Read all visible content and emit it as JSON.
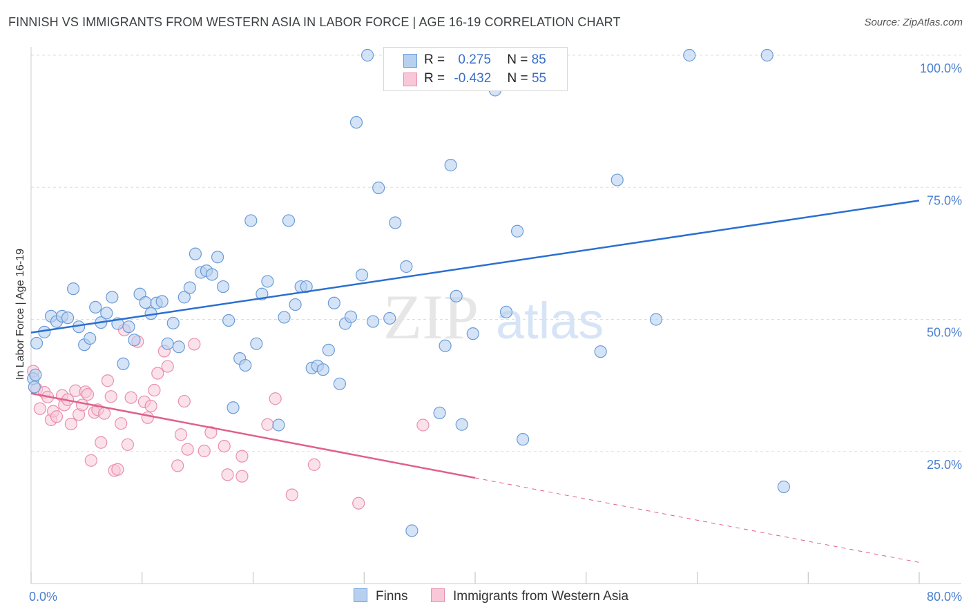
{
  "header": {
    "title": "FINNISH VS IMMIGRANTS FROM WESTERN ASIA IN LABOR FORCE | AGE 16-19 CORRELATION CHART",
    "source": "Source: ZipAtlas.com"
  },
  "watermark": {
    "zip": "ZIP",
    "atlas": "atlas"
  },
  "legend": {
    "rows": [
      {
        "r_label": "R =",
        "r_value": "0.275",
        "n_label": "N =",
        "n_value": "85"
      },
      {
        "r_label": "R =",
        "r_value": "-0.432",
        "n_label": "N =",
        "n_value": "55"
      }
    ]
  },
  "bottom_legend": {
    "finns": "Finns",
    "immigrants": "Immigrants from Western Asia"
  },
  "colors": {
    "finns_fill": "#b8d0f0",
    "finns_stroke": "#6a9bd8",
    "finns_line": "#2a6fd0",
    "imm_fill": "#f8c8d8",
    "imm_stroke": "#e890ac",
    "imm_line": "#e0608a",
    "tick_text": "#4a7fd0",
    "grid": "#dddddd"
  },
  "chart_data": {
    "type": "scatter",
    "title": "FINNISH VS IMMIGRANTS FROM WESTERN ASIA IN LABOR FORCE | AGE 16-19 CORRELATION CHART",
    "xlabel": "",
    "ylabel": "In Labor Force | Age 16-19",
    "xlim": [
      0,
      80
    ],
    "ylim": [
      0,
      100
    ],
    "x_tick_labels": [
      {
        "value": 0,
        "label": "0.0%"
      },
      {
        "value": 80,
        "label": "80.0%"
      }
    ],
    "y_tick_labels": [
      {
        "value": 25,
        "label": "25.0%"
      },
      {
        "value": 50,
        "label": "50.0%"
      },
      {
        "value": 75,
        "label": "75.0%"
      },
      {
        "value": 100,
        "label": "100.0%"
      }
    ],
    "grid": true,
    "legend_position": "top-center",
    "series": [
      {
        "name": "Finns",
        "r": 0.275,
        "n": 85,
        "trend": {
          "x0": 0,
          "y0": 47.5,
          "x1": 80,
          "y1": 72.5
        },
        "points": [
          [
            0.5,
            45.5
          ],
          [
            1.2,
            47.6
          ],
          [
            1.8,
            50.6
          ],
          [
            2.3,
            49.6
          ],
          [
            2.8,
            50.6
          ],
          [
            3.3,
            50.3
          ],
          [
            3.8,
            55.8
          ],
          [
            4.3,
            48.6
          ],
          [
            4.8,
            45.2
          ],
          [
            5.3,
            46.4
          ],
          [
            5.8,
            52.3
          ],
          [
            6.3,
            49.4
          ],
          [
            6.8,
            51.2
          ],
          [
            7.3,
            54.2
          ],
          [
            7.8,
            49.2
          ],
          [
            8.3,
            41.6
          ],
          [
            8.8,
            48.6
          ],
          [
            9.3,
            46.1
          ],
          [
            9.8,
            54.8
          ],
          [
            10.3,
            53.2
          ],
          [
            10.8,
            51.1
          ],
          [
            11.3,
            53.1
          ],
          [
            11.8,
            53.4
          ],
          [
            12.3,
            45.4
          ],
          [
            12.8,
            49.3
          ],
          [
            13.3,
            44.8
          ],
          [
            13.8,
            54.2
          ],
          [
            14.3,
            56.0
          ],
          [
            14.8,
            62.4
          ],
          [
            15.3,
            58.9
          ],
          [
            15.8,
            59.2
          ],
          [
            16.3,
            58.5
          ],
          [
            16.8,
            61.8
          ],
          [
            17.3,
            56.2
          ],
          [
            17.8,
            49.8
          ],
          [
            18.2,
            33.3
          ],
          [
            18.8,
            42.6
          ],
          [
            19.3,
            41.3
          ],
          [
            19.8,
            68.7
          ],
          [
            20.3,
            45.4
          ],
          [
            20.8,
            54.8
          ],
          [
            21.3,
            57.2
          ],
          [
            22.3,
            30.0
          ],
          [
            22.8,
            50.4
          ],
          [
            23.2,
            68.7
          ],
          [
            23.8,
            52.8
          ],
          [
            24.3,
            56.2
          ],
          [
            24.8,
            56.2
          ],
          [
            25.3,
            40.8
          ],
          [
            25.8,
            41.2
          ],
          [
            26.3,
            40.5
          ],
          [
            26.8,
            44.2
          ],
          [
            27.3,
            53.1
          ],
          [
            27.8,
            37.8
          ],
          [
            28.3,
            49.2
          ],
          [
            28.8,
            50.5
          ],
          [
            29.3,
            87.3
          ],
          [
            29.8,
            58.4
          ],
          [
            30.3,
            100.0
          ],
          [
            30.8,
            49.6
          ],
          [
            31.3,
            74.9
          ],
          [
            32.3,
            50.2
          ],
          [
            32.8,
            68.3
          ],
          [
            33.8,
            60.0
          ],
          [
            34.3,
            10.0
          ],
          [
            35.3,
            100.0
          ],
          [
            36.8,
            32.3
          ],
          [
            37.3,
            45.0
          ],
          [
            37.8,
            79.2
          ],
          [
            38.3,
            54.4
          ],
          [
            38.8,
            30.1
          ],
          [
            39.8,
            47.3
          ],
          [
            41.8,
            93.4
          ],
          [
            42.8,
            51.4
          ],
          [
            43.8,
            66.7
          ],
          [
            44.3,
            27.3
          ],
          [
            51.3,
            43.9
          ],
          [
            52.8,
            76.4
          ],
          [
            56.3,
            50.0
          ],
          [
            59.3,
            100.0
          ],
          [
            66.3,
            100.0
          ],
          [
            67.8,
            18.3
          ],
          [
            0.2,
            38.8
          ],
          [
            0.4,
            39.5
          ],
          [
            0.3,
            37.2
          ]
        ]
      },
      {
        "name": "Immigrants from Western Asia",
        "r": -0.432,
        "n": 55,
        "trend": {
          "x0": 0,
          "y0": 36.0,
          "x1": 40,
          "y1": 20.0,
          "dash_x1": 80,
          "dash_y1": 4.0
        },
        "points": [
          [
            0.2,
            40.2
          ],
          [
            0.5,
            36.8
          ],
          [
            0.8,
            33.1
          ],
          [
            1.2,
            36.2
          ],
          [
            1.5,
            35.3
          ],
          [
            1.8,
            31.0
          ],
          [
            2.0,
            32.6
          ],
          [
            2.3,
            31.6
          ],
          [
            2.8,
            35.6
          ],
          [
            3.0,
            33.8
          ],
          [
            3.3,
            34.8
          ],
          [
            3.6,
            30.2
          ],
          [
            4.0,
            36.5
          ],
          [
            4.3,
            32.0
          ],
          [
            4.6,
            33.8
          ],
          [
            4.9,
            36.3
          ],
          [
            5.1,
            35.8
          ],
          [
            5.4,
            23.3
          ],
          [
            5.7,
            32.4
          ],
          [
            6.0,
            32.9
          ],
          [
            6.3,
            26.7
          ],
          [
            6.6,
            32.2
          ],
          [
            6.9,
            38.4
          ],
          [
            7.2,
            35.4
          ],
          [
            7.5,
            21.4
          ],
          [
            7.8,
            21.6
          ],
          [
            8.1,
            30.3
          ],
          [
            8.4,
            48.0
          ],
          [
            8.7,
            26.3
          ],
          [
            9.0,
            35.2
          ],
          [
            9.6,
            45.8
          ],
          [
            10.2,
            34.4
          ],
          [
            10.5,
            31.4
          ],
          [
            10.8,
            33.6
          ],
          [
            11.1,
            36.6
          ],
          [
            11.4,
            39.8
          ],
          [
            12.0,
            44.0
          ],
          [
            12.3,
            41.1
          ],
          [
            13.2,
            22.3
          ],
          [
            13.5,
            28.2
          ],
          [
            13.8,
            34.5
          ],
          [
            14.1,
            25.4
          ],
          [
            14.7,
            45.3
          ],
          [
            15.6,
            25.1
          ],
          [
            16.2,
            28.6
          ],
          [
            17.4,
            26.0
          ],
          [
            17.7,
            20.6
          ],
          [
            19.0,
            24.1
          ],
          [
            19.0,
            20.3
          ],
          [
            21.3,
            30.1
          ],
          [
            22.0,
            35.0
          ],
          [
            23.5,
            16.8
          ],
          [
            25.5,
            22.5
          ],
          [
            29.5,
            15.2
          ],
          [
            35.3,
            30.0
          ]
        ]
      }
    ]
  }
}
